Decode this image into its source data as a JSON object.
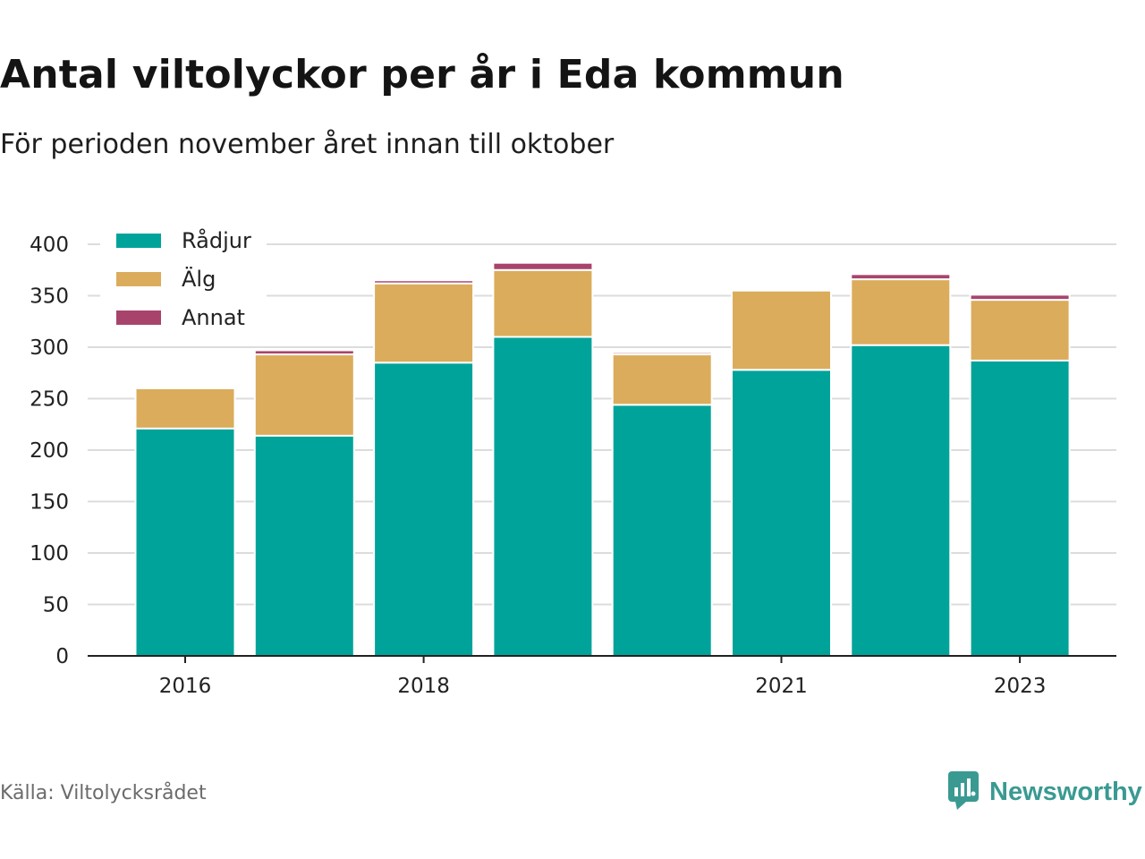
{
  "title": "Antal viltolyckor per år i Eda kommun",
  "subtitle": "För perioden november året innan till oktober",
  "source": "Källa: Viltolycksrådet",
  "brand": {
    "name": "Newsworthy",
    "icon": "newsworthy-logo-icon",
    "color": "#3a9a92"
  },
  "chart_data": {
    "type": "bar",
    "stacked": true,
    "categories": [
      "2016",
      "2017",
      "2018",
      "2019",
      "2020",
      "2021",
      "2022",
      "2023"
    ],
    "x_tick_labels": [
      "2016",
      "",
      "2018",
      "",
      "",
      "2021",
      "",
      "2023"
    ],
    "series": [
      {
        "name": "Rådjur",
        "color": "#00a39a",
        "values": [
          221,
          214,
          285,
          310,
          244,
          278,
          302,
          287
        ]
      },
      {
        "name": "Älg",
        "color": "#dbac5b",
        "values": [
          39,
          79,
          77,
          65,
          49,
          77,
          64,
          59
        ]
      },
      {
        "name": "Annat",
        "color": "#a8446c",
        "values": [
          0,
          4,
          3,
          7,
          2,
          0,
          5,
          5
        ]
      }
    ],
    "ylim": [
      0,
      400
    ],
    "yticks": [
      0,
      50,
      100,
      150,
      200,
      250,
      300,
      350,
      400
    ],
    "grid": true,
    "legend_position": "top-left"
  }
}
